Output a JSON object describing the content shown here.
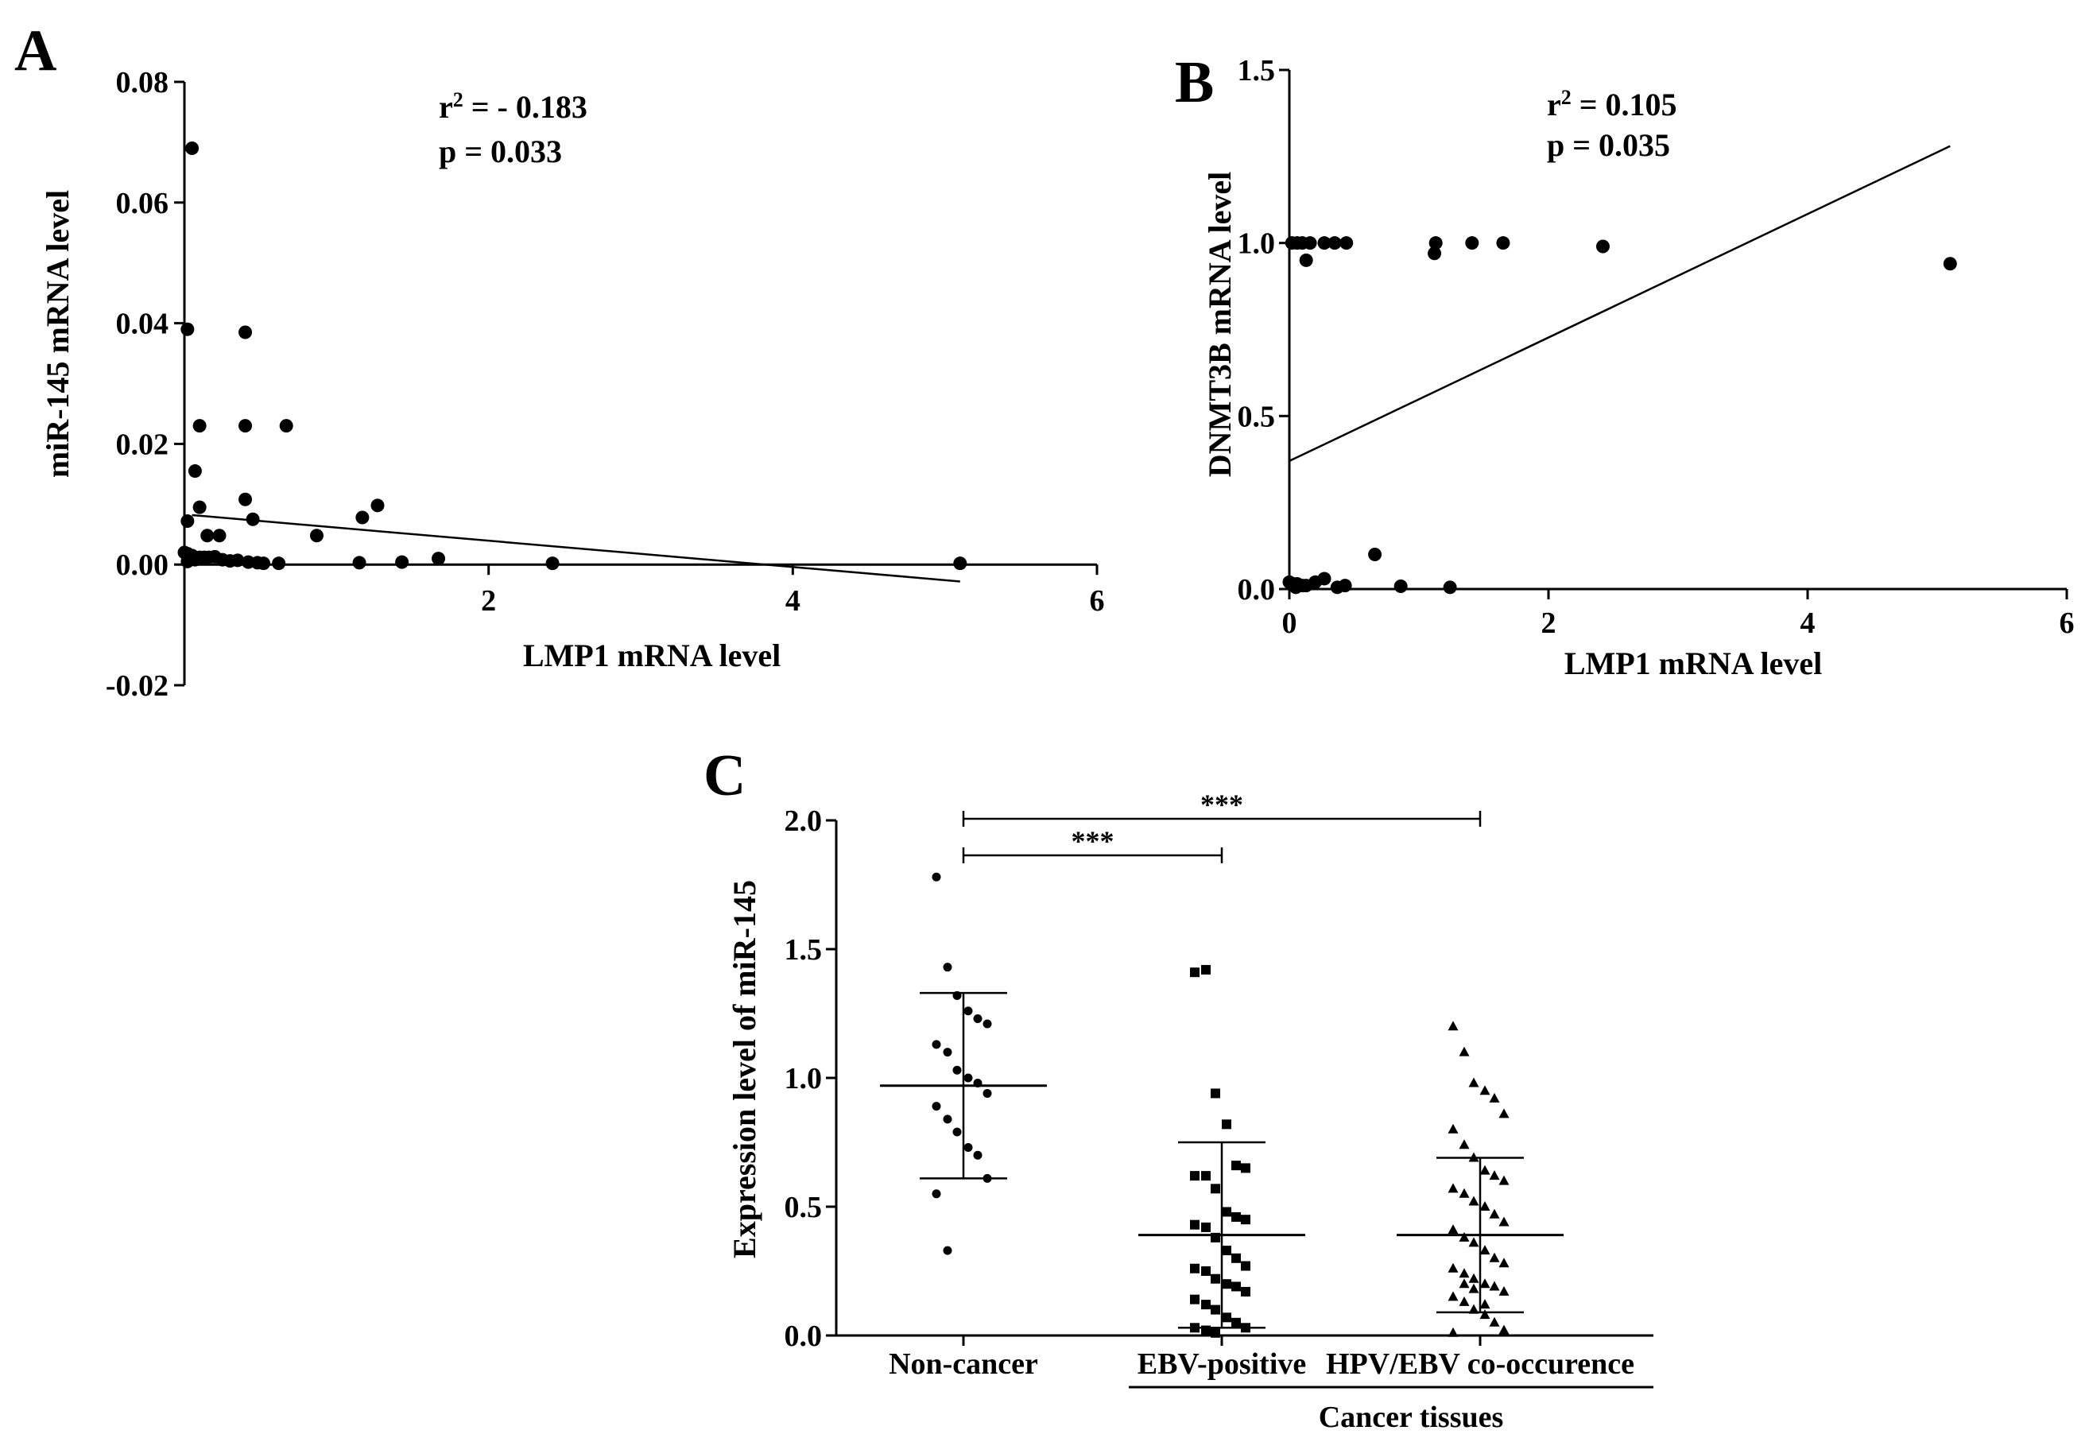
{
  "chart_data": [
    {
      "panel": "A",
      "type": "scatter",
      "xlabel": "LMP1 mRNA level",
      "ylabel": "miR-145 mRNA level",
      "xlim": [
        0,
        6
      ],
      "ylim": [
        -0.02,
        0.08
      ],
      "xticks": [
        2,
        4,
        6
      ],
      "yticks": [
        -0.02,
        0.0,
        0.02,
        0.04,
        0.06,
        0.08
      ],
      "ytick_labels": [
        "-0.02",
        "0.00",
        "0.02",
        "0.04",
        "0.06",
        "0.08"
      ],
      "annotations": [
        "r² = - 0.183",
        "p = 0.033"
      ],
      "r2_text": "- 0.183",
      "p_text": "p = 0.033",
      "fit_line": {
        "x": [
          0.05,
          5.1
        ],
        "y": [
          0.0082,
          -0.0028
        ]
      },
      "points": [
        [
          0.05,
          0.069
        ],
        [
          0.02,
          0.039
        ],
        [
          0.4,
          0.0385
        ],
        [
          0.1,
          0.023
        ],
        [
          0.4,
          0.023
        ],
        [
          0.67,
          0.023
        ],
        [
          0.07,
          0.0155
        ],
        [
          0.4,
          0.0108
        ],
        [
          0.1,
          0.0095
        ],
        [
          1.27,
          0.0098
        ],
        [
          1.17,
          0.0078
        ],
        [
          0.45,
          0.0075
        ],
        [
          0.02,
          0.0072
        ],
        [
          0.15,
          0.0048
        ],
        [
          0.23,
          0.0048
        ],
        [
          0.87,
          0.0048
        ],
        [
          0.0,
          0.002
        ],
        [
          0.02,
          0.0018
        ],
        [
          0.05,
          0.0015
        ],
        [
          0.1,
          0.0012
        ],
        [
          0.13,
          0.0012
        ],
        [
          0.16,
          0.0012
        ],
        [
          0.2,
          0.0013
        ],
        [
          0.25,
          0.0008
        ],
        [
          0.3,
          0.0006
        ],
        [
          0.35,
          0.0007
        ],
        [
          0.42,
          0.0004
        ],
        [
          0.48,
          0.0003
        ],
        [
          0.52,
          0.0002
        ],
        [
          0.62,
          0.0002
        ],
        [
          1.15,
          0.0003
        ],
        [
          1.43,
          0.0004
        ],
        [
          1.67,
          0.001
        ],
        [
          2.42,
          0.0002
        ],
        [
          5.1,
          0.0002
        ],
        [
          0.02,
          0.0005
        ],
        [
          0.07,
          0.0008
        ]
      ]
    },
    {
      "panel": "B",
      "type": "scatter",
      "xlabel": "LMP1 mRNA level",
      "ylabel": "DNMT3B mRNA level",
      "xlim": [
        0,
        6
      ],
      "ylim": [
        0,
        1.5
      ],
      "xticks": [
        0,
        2,
        4,
        6
      ],
      "yticks": [
        0.0,
        0.5,
        1.0,
        1.5
      ],
      "ytick_labels": [
        "0.0",
        "0.5",
        "1.0",
        "1.5"
      ],
      "annotations": [
        "r² = 0.105",
        "p = 0.035"
      ],
      "r2_text": "= 0.105",
      "p_text": "p = 0.035",
      "fit_line": {
        "x": [
          0.0,
          5.1
        ],
        "y": [
          0.37,
          1.28
        ]
      },
      "points": [
        [
          0.02,
          1.0
        ],
        [
          0.06,
          1.0
        ],
        [
          0.1,
          1.0
        ],
        [
          0.16,
          1.0
        ],
        [
          0.27,
          1.0
        ],
        [
          0.35,
          1.0
        ],
        [
          0.44,
          1.0
        ],
        [
          0.13,
          0.95
        ],
        [
          1.12,
          0.97
        ],
        [
          1.13,
          1.0
        ],
        [
          1.41,
          1.0
        ],
        [
          1.65,
          1.0
        ],
        [
          2.42,
          0.99
        ],
        [
          5.1,
          0.94
        ],
        [
          0.0,
          0.02
        ],
        [
          0.03,
          0.015
        ],
        [
          0.06,
          0.015
        ],
        [
          0.1,
          0.01
        ],
        [
          0.13,
          0.01
        ],
        [
          0.2,
          0.02
        ],
        [
          0.27,
          0.03
        ],
        [
          0.37,
          0.005
        ],
        [
          0.43,
          0.01
        ],
        [
          0.66,
          0.1
        ],
        [
          0.86,
          0.008
        ],
        [
          1.24,
          0.005
        ],
        [
          0.05,
          0.005
        ]
      ]
    },
    {
      "panel": "C",
      "type": "scatter",
      "ylabel": "Expression level of miR-145",
      "ylim": [
        0,
        2.0
      ],
      "yticks": [
        0.0,
        0.5,
        1.0,
        1.5,
        2.0
      ],
      "ytick_labels": [
        "0.0",
        "0.5",
        "1.0",
        "1.5",
        "2.0"
      ],
      "categories": [
        "Non-cancer",
        "EBV-positive",
        "HPV/EBV co-occurence"
      ],
      "group_label": "Cancer tissues",
      "significance": [
        {
          "from": "Non-cancer",
          "to": "EBV-positive",
          "label": "***"
        },
        {
          "from": "Non-cancer",
          "to": "HPV/EBV co-occurence",
          "label": "***"
        }
      ],
      "series": [
        {
          "name": "Non-cancer",
          "marker": "circle",
          "mean": 0.97,
          "sd_low": 0.61,
          "sd_high": 1.33,
          "values": [
            1.78,
            1.43,
            1.32,
            1.26,
            1.23,
            1.21,
            1.13,
            1.1,
            1.03,
            1.0,
            0.98,
            0.94,
            0.89,
            0.84,
            0.79,
            0.73,
            0.7,
            0.61,
            0.55,
            0.33
          ]
        },
        {
          "name": "EBV-positive",
          "marker": "square",
          "mean": 0.39,
          "sd_low": 0.03,
          "sd_high": 0.75,
          "values": [
            1.41,
            1.42,
            0.94,
            0.82,
            0.66,
            0.65,
            0.62,
            0.62,
            0.57,
            0.48,
            0.46,
            0.45,
            0.43,
            0.42,
            0.38,
            0.33,
            0.3,
            0.27,
            0.26,
            0.25,
            0.22,
            0.2,
            0.19,
            0.17,
            0.14,
            0.12,
            0.1,
            0.07,
            0.05,
            0.03,
            0.03,
            0.02,
            0.01
          ]
        },
        {
          "name": "HPV/EBV co-occurence",
          "marker": "triangle",
          "mean": 0.39,
          "sd_low": 0.09,
          "sd_high": 0.69,
          "values": [
            1.2,
            1.1,
            0.98,
            0.95,
            0.92,
            0.86,
            0.8,
            0.74,
            0.69,
            0.64,
            0.62,
            0.6,
            0.57,
            0.55,
            0.52,
            0.5,
            0.47,
            0.44,
            0.41,
            0.38,
            0.36,
            0.33,
            0.3,
            0.28,
            0.26,
            0.24,
            0.22,
            0.2,
            0.19,
            0.17,
            0.15,
            0.13,
            0.1,
            0.08,
            0.05,
            0.02,
            0.01,
            0.2,
            0.18,
            0.12
          ]
        }
      ]
    }
  ]
}
